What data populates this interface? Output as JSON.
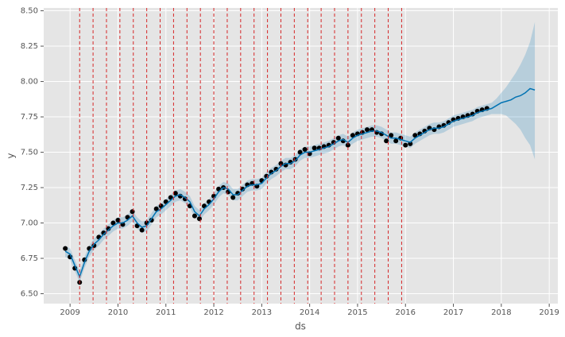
{
  "chart_data": {
    "type": "line",
    "xlabel": "ds",
    "ylabel": "y",
    "xlim": [
      2008.45,
      2019.18
    ],
    "ylim": [
      6.43,
      8.52
    ],
    "xticks": [
      2009,
      2010,
      2011,
      2012,
      2013,
      2014,
      2015,
      2016,
      2017,
      2018,
      2019
    ],
    "yticks": [
      {
        "value": 6.5,
        "label": "6.50"
      },
      6.75,
      {
        "value": 7.0,
        "label": "7.00"
      },
      7.25,
      {
        "value": 7.5,
        "label": "7.50"
      },
      7.75,
      {
        "value": 8.0,
        "label": "8.00"
      },
      8.25,
      {
        "value": 8.5,
        "label": "8.50"
      }
    ],
    "grid": true,
    "changepoints": {
      "color": "#d62728",
      "values": [
        2009.2,
        2009.48,
        2009.76,
        2010.04,
        2010.32,
        2010.6,
        2010.88,
        2011.16,
        2011.44,
        2011.72,
        2012.0,
        2012.28,
        2012.56,
        2012.84,
        2013.12,
        2013.4,
        2013.68,
        2013.96,
        2014.24,
        2014.52,
        2014.8,
        2015.08,
        2015.36,
        2015.64,
        2015.92
      ]
    },
    "observed": {
      "color": "#000000",
      "x": [
        2008.9,
        2009.0,
        2009.1,
        2009.2,
        2009.3,
        2009.4,
        2009.5,
        2009.6,
        2009.7,
        2009.8,
        2009.9,
        2010.0,
        2010.1,
        2010.2,
        2010.3,
        2010.4,
        2010.5,
        2010.6,
        2010.7,
        2010.8,
        2010.9,
        2011.0,
        2011.1,
        2011.2,
        2011.3,
        2011.4,
        2011.5,
        2011.6,
        2011.7,
        2011.8,
        2011.9,
        2012.0,
        2012.1,
        2012.2,
        2012.3,
        2012.4,
        2012.5,
        2012.6,
        2012.7,
        2012.8,
        2012.9,
        2013.0,
        2013.1,
        2013.2,
        2013.3,
        2013.4,
        2013.5,
        2013.6,
        2013.7,
        2013.8,
        2013.9,
        2014.0,
        2014.1,
        2014.2,
        2014.3,
        2014.4,
        2014.5,
        2014.6,
        2014.7,
        2014.8,
        2014.9,
        2015.0,
        2015.1,
        2015.2,
        2015.3,
        2015.4,
        2015.5,
        2015.6,
        2015.7,
        2015.8,
        2015.9,
        2016.0,
        2016.1,
        2016.2,
        2016.3,
        2016.4,
        2016.5,
        2016.6,
        2016.7,
        2016.8,
        2016.9,
        2017.0,
        2017.1,
        2017.2,
        2017.3,
        2017.4,
        2017.5,
        2017.6,
        2017.7
      ],
      "values": [
        6.82,
        6.76,
        6.68,
        6.58,
        6.74,
        6.82,
        6.84,
        6.9,
        6.93,
        6.96,
        7.0,
        7.02,
        6.99,
        7.04,
        7.08,
        6.98,
        6.95,
        7.0,
        7.02,
        7.1,
        7.12,
        7.15,
        7.18,
        7.21,
        7.19,
        7.17,
        7.12,
        7.05,
        7.03,
        7.12,
        7.15,
        7.19,
        7.24,
        7.25,
        7.22,
        7.18,
        7.21,
        7.24,
        7.27,
        7.28,
        7.26,
        7.3,
        7.33,
        7.36,
        7.38,
        7.42,
        7.41,
        7.43,
        7.45,
        7.5,
        7.52,
        7.49,
        7.53,
        7.53,
        7.54,
        7.55,
        7.57,
        7.6,
        7.58,
        7.55,
        7.62,
        7.63,
        7.64,
        7.66,
        7.66,
        7.64,
        7.63,
        7.58,
        7.62,
        7.58,
        7.6,
        7.55,
        7.56,
        7.62,
        7.63,
        7.65,
        7.67,
        7.66,
        7.68,
        7.69,
        7.71,
        7.73,
        7.74,
        7.75,
        7.76,
        7.77,
        7.79,
        7.8,
        7.81
      ]
    },
    "forecast": {
      "color": "#0072B2",
      "x": [
        2008.9,
        2009.0,
        2009.1,
        2009.2,
        2009.3,
        2009.4,
        2009.5,
        2009.6,
        2009.7,
        2009.8,
        2009.9,
        2010.0,
        2010.1,
        2010.2,
        2010.3,
        2010.4,
        2010.5,
        2010.6,
        2010.7,
        2010.8,
        2010.9,
        2011.0,
        2011.1,
        2011.2,
        2011.3,
        2011.4,
        2011.5,
        2011.6,
        2011.7,
        2011.8,
        2011.9,
        2012.0,
        2012.1,
        2012.2,
        2012.3,
        2012.4,
        2012.5,
        2012.6,
        2012.7,
        2012.8,
        2012.9,
        2013.0,
        2013.1,
        2013.2,
        2013.3,
        2013.4,
        2013.5,
        2013.6,
        2013.7,
        2013.8,
        2013.9,
        2014.0,
        2014.1,
        2014.2,
        2014.3,
        2014.4,
        2014.5,
        2014.6,
        2014.7,
        2014.8,
        2014.9,
        2015.0,
        2015.1,
        2015.2,
        2015.3,
        2015.4,
        2015.5,
        2015.6,
        2015.7,
        2015.8,
        2015.9,
        2016.0,
        2016.1,
        2016.2,
        2016.3,
        2016.4,
        2016.5,
        2016.6,
        2016.7,
        2016.8,
        2016.9,
        2017.0,
        2017.1,
        2017.2,
        2017.3,
        2017.4,
        2017.5,
        2017.6,
        2017.7,
        2017.8,
        2017.9,
        2018.0,
        2018.1,
        2018.2,
        2018.3,
        2018.4,
        2018.5,
        2018.6,
        2018.7
      ],
      "values": [
        6.8,
        6.78,
        6.7,
        6.62,
        6.72,
        6.8,
        6.85,
        6.88,
        6.92,
        6.95,
        6.98,
        7.0,
        7.0,
        7.02,
        7.05,
        7.0,
        6.97,
        6.98,
        7.03,
        7.08,
        7.1,
        7.13,
        7.16,
        7.19,
        7.2,
        7.18,
        7.15,
        7.08,
        7.05,
        7.1,
        7.13,
        7.17,
        7.22,
        7.25,
        7.24,
        7.2,
        7.2,
        7.23,
        7.26,
        7.27,
        7.27,
        7.28,
        7.32,
        7.35,
        7.37,
        7.4,
        7.42,
        7.42,
        7.44,
        7.48,
        7.5,
        7.5,
        7.51,
        7.52,
        7.53,
        7.54,
        7.56,
        7.58,
        7.59,
        7.57,
        7.6,
        7.62,
        7.63,
        7.64,
        7.65,
        7.65,
        7.64,
        7.62,
        7.6,
        7.6,
        7.59,
        7.58,
        7.57,
        7.6,
        7.62,
        7.64,
        7.66,
        7.67,
        7.67,
        7.68,
        7.7,
        7.72,
        7.73,
        7.74,
        7.75,
        7.76,
        7.78,
        7.79,
        7.8,
        7.81,
        7.83,
        7.85,
        7.86,
        7.87,
        7.89,
        7.9,
        7.92,
        7.95,
        7.94
      ],
      "lower": [
        6.76,
        6.74,
        6.66,
        6.58,
        6.68,
        6.76,
        6.81,
        6.84,
        6.88,
        6.91,
        6.94,
        6.96,
        6.96,
        6.98,
        7.01,
        6.96,
        6.93,
        6.94,
        6.99,
        7.04,
        7.06,
        7.09,
        7.12,
        7.15,
        7.16,
        7.14,
        7.11,
        7.04,
        7.01,
        7.06,
        7.09,
        7.13,
        7.18,
        7.21,
        7.2,
        7.16,
        7.16,
        7.19,
        7.22,
        7.23,
        7.23,
        7.24,
        7.28,
        7.31,
        7.33,
        7.36,
        7.38,
        7.38,
        7.4,
        7.44,
        7.46,
        7.46,
        7.47,
        7.48,
        7.49,
        7.5,
        7.52,
        7.54,
        7.55,
        7.53,
        7.56,
        7.58,
        7.59,
        7.6,
        7.61,
        7.61,
        7.6,
        7.58,
        7.56,
        7.56,
        7.55,
        7.54,
        7.53,
        7.56,
        7.58,
        7.6,
        7.62,
        7.63,
        7.63,
        7.64,
        7.66,
        7.68,
        7.69,
        7.7,
        7.71,
        7.72,
        7.74,
        7.75,
        7.76,
        7.77,
        7.77,
        7.77,
        7.76,
        7.73,
        7.7,
        7.66,
        7.6,
        7.55,
        7.45
      ],
      "upper": [
        6.84,
        6.82,
        6.74,
        6.66,
        6.76,
        6.84,
        6.89,
        6.92,
        6.96,
        6.99,
        7.02,
        7.04,
        7.04,
        7.06,
        7.09,
        7.04,
        7.01,
        7.02,
        7.07,
        7.12,
        7.14,
        7.17,
        7.2,
        7.23,
        7.24,
        7.22,
        7.19,
        7.12,
        7.09,
        7.14,
        7.17,
        7.21,
        7.26,
        7.29,
        7.28,
        7.24,
        7.24,
        7.27,
        7.3,
        7.31,
        7.31,
        7.32,
        7.36,
        7.39,
        7.41,
        7.44,
        7.46,
        7.46,
        7.48,
        7.52,
        7.54,
        7.54,
        7.55,
        7.56,
        7.57,
        7.58,
        7.6,
        7.62,
        7.63,
        7.61,
        7.64,
        7.66,
        7.67,
        7.68,
        7.69,
        7.69,
        7.68,
        7.66,
        7.64,
        7.64,
        7.63,
        7.62,
        7.61,
        7.64,
        7.66,
        7.68,
        7.7,
        7.71,
        7.71,
        7.72,
        7.74,
        7.76,
        7.77,
        7.78,
        7.79,
        7.8,
        7.82,
        7.83,
        7.84,
        7.85,
        7.88,
        7.92,
        7.96,
        8.01,
        8.06,
        8.12,
        8.19,
        8.28,
        8.42
      ]
    }
  }
}
